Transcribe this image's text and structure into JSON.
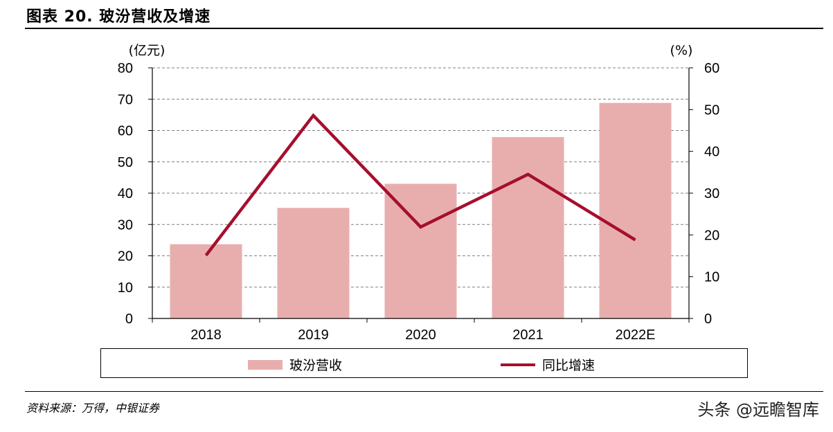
{
  "title": "图表 20. 玻汾营收及增速",
  "source": "资料来源：万得，中银证券",
  "watermark": "头条 @远瞻智库",
  "colors": {
    "bar": "#E8AEAE",
    "line": "#A50F2D",
    "grid": "#7F7F7F",
    "axis": "#000000"
  },
  "chart_data": {
    "type": "bar",
    "categories": [
      "2018",
      "2019",
      "2020",
      "2021",
      "2022E"
    ],
    "series": [
      {
        "name": "玻汾营收",
        "type": "bar",
        "axis": "left",
        "values": [
          23.7,
          35.3,
          43.0,
          57.9,
          68.8
        ]
      },
      {
        "name": "同比增速",
        "type": "line",
        "axis": "right",
        "values": [
          15.1,
          48.6,
          21.9,
          34.5,
          18.8
        ]
      }
    ],
    "y_left": {
      "unit_label": "(亿元)",
      "range": [
        0,
        80
      ],
      "ticks": [
        "0",
        "10",
        "20",
        "30",
        "40",
        "50",
        "60",
        "70",
        "80"
      ]
    },
    "y_right": {
      "unit_label": "(%)",
      "range": [
        0,
        60
      ],
      "ticks": [
        "0",
        "10",
        "20",
        "30",
        "40",
        "50",
        "60"
      ]
    },
    "grid": "dashed horizontal",
    "legend_position": "bottom"
  }
}
